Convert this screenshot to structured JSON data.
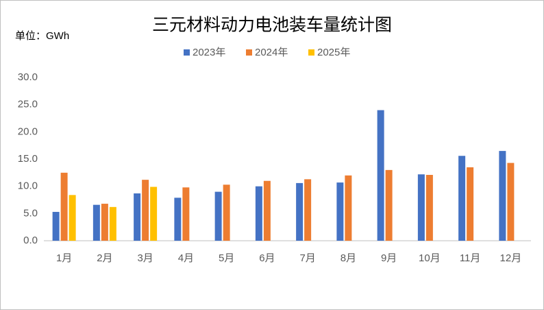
{
  "chart_data": {
    "type": "bar",
    "title": "三元材料动力电池装车量统计图",
    "unit_label": "单位：GWh",
    "categories": [
      "1月",
      "2月",
      "3月",
      "4月",
      "5月",
      "6月",
      "7月",
      "8月",
      "9月",
      "10月",
      "11月",
      "12月"
    ],
    "series": [
      {
        "name": "2023年",
        "color": "#4472c4",
        "values": [
          5.3,
          6.6,
          8.7,
          7.9,
          9.0,
          10.0,
          10.6,
          10.7,
          24.0,
          12.2,
          15.6,
          16.5
        ]
      },
      {
        "name": "2024年",
        "color": "#ed7d31",
        "values": [
          12.5,
          6.8,
          11.2,
          9.8,
          10.3,
          11.0,
          11.3,
          12.0,
          13.0,
          12.1,
          13.5,
          14.3
        ]
      },
      {
        "name": "2025年",
        "color": "#ffc000",
        "values": [
          8.4,
          6.2,
          9.9,
          null,
          null,
          null,
          null,
          null,
          null,
          null,
          null,
          null
        ]
      }
    ],
    "ylim": [
      0,
      30
    ],
    "yticks": [
      {
        "value": 0,
        "label": "0.0"
      },
      {
        "value": 5,
        "label": "5.0"
      },
      {
        "value": 10,
        "label": "10.0"
      },
      {
        "value": 15,
        "label": "15.0"
      },
      {
        "value": 20,
        "label": "20.0"
      },
      {
        "value": 25,
        "label": "25.0"
      },
      {
        "value": 30,
        "label": "30.0"
      }
    ],
    "legend": "top",
    "grid": false
  }
}
